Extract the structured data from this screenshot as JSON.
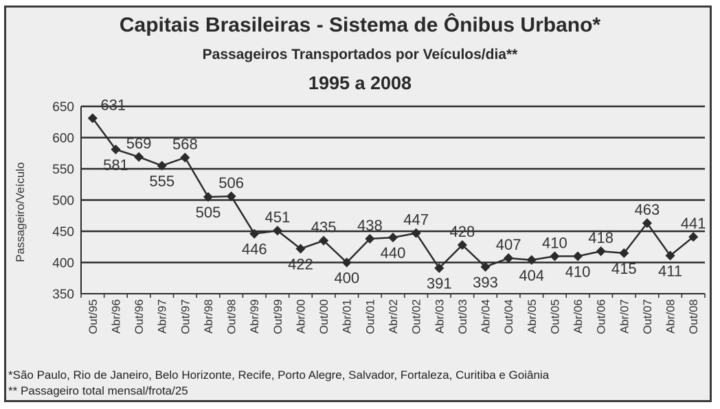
{
  "chart_data": {
    "type": "line",
    "title": "Capitais Brasileiras - Sistema de Ônibus Urbano*",
    "subtitle": "Passageiros Transportados por Veículos/dia**",
    "period": "1995 a 2008",
    "ylabel": "Passageiro/Veículo",
    "xlabel": "",
    "ylim": [
      350,
      650
    ],
    "yticks": [
      "650",
      "600",
      "550",
      "500",
      "450",
      "400",
      "350"
    ],
    "grid": "horizontal",
    "categories": [
      "Out/95",
      "Abr/96",
      "Out/96",
      "Abr/97",
      "Out/97",
      "Abr/98",
      "Out/98",
      "Abr/99",
      "Out/99",
      "Abr/00",
      "Out/00",
      "Abr/01",
      "Out/01",
      "Abr/02",
      "Out/02",
      "Abr/03",
      "Out/03",
      "Abr/04",
      "Out/04",
      "Abr/05",
      "Out/05",
      "Abr/06",
      "Out/06",
      "Abr/07",
      "Out/07",
      "Abr/08",
      "Out/08"
    ],
    "values": [
      631,
      581,
      569,
      555,
      568,
      505,
      506,
      446,
      451,
      422,
      435,
      400,
      438,
      440,
      447,
      391,
      428,
      393,
      407,
      404,
      410,
      410,
      418,
      415,
      463,
      411,
      441
    ],
    "colors": {
      "line": "#2b2b2b",
      "grid": "#2b2b2b",
      "background": "#eeeeee"
    }
  },
  "footnotes": {
    "note1": "*São Paulo, Rio de Janeiro, Belo Horizonte, Recife, Porto Alegre, Salvador, Fortaleza, Curitiba e Goiânia",
    "note2": "** Passageiro total mensal/frota/25"
  }
}
